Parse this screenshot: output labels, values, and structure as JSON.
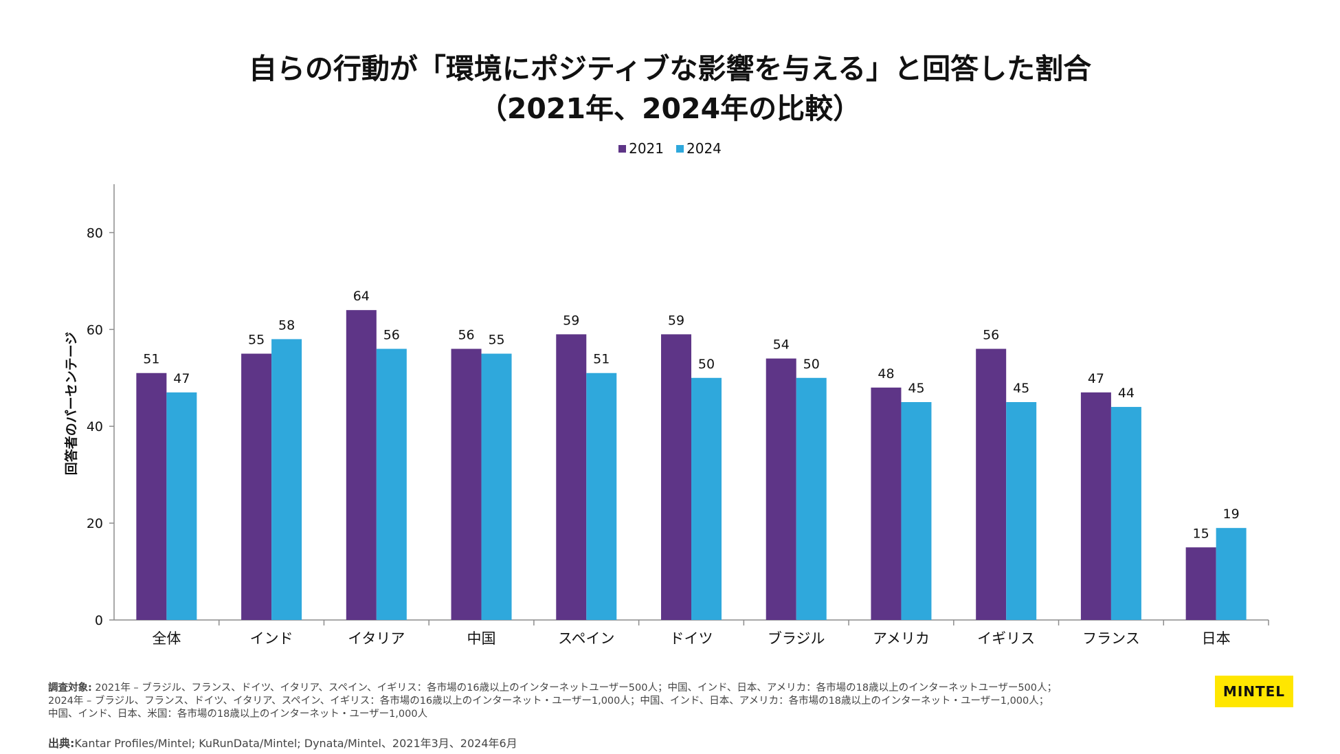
{
  "title_line1": "自らの行動が「環境にポジティブな影響を与える」と回答した割合",
  "title_line2": "（2021年、2024年の比較）",
  "colors": {
    "2021": "#5e3587",
    "2024": "#2fa8dc",
    "axis": "#8c8c8c"
  },
  "chart_data": {
    "type": "bar",
    "categories": [
      "全体",
      "インド",
      "イタリア",
      "中国",
      "スペイン",
      "ドイツ",
      "ブラジル",
      "アメリカ",
      "イギリス",
      "フランス",
      "日本"
    ],
    "series": [
      {
        "name": "2021",
        "values": [
          51,
          55,
          64,
          56,
          59,
          59,
          54,
          48,
          56,
          47,
          15
        ]
      },
      {
        "name": "2024",
        "values": [
          47,
          58,
          56,
          55,
          51,
          50,
          50,
          45,
          45,
          44,
          19
        ]
      }
    ],
    "ylabel": "回答者のパーセンテージ",
    "ylim": [
      0,
      90
    ],
    "yticks": [
      0,
      20,
      40,
      60,
      80
    ],
    "legend": "top-center",
    "grid": false
  },
  "footnote": {
    "label": "調査対象:",
    "line1": " 2021年 – ブラジル、フランス、ドイツ、イタリア、スペイン、イギリス：各市場の16歳以上のインターネットユーザー500人；中国、インド、日本、アメリカ：各市場の18歳以上のインターネットユーザー500人；",
    "line2": "2024年 – ブラジル、フランス、ドイツ、イタリア、スペイン、イギリス：各市場の16歳以上のインターネット・ユーザー1,000人；中国、インド、日本、アメリカ：各市場の18歳以上のインターネット・ユーザー1,000人；",
    "line3": "中国、インド、日本、米国：各市場の18歳以上のインターネット・ユーザー1,000人"
  },
  "source": {
    "label": "出典:",
    "text": "Kantar Profiles/Mintel; KuRunData/Mintel; Dynata/Mintel、2021年3月、2024年6月"
  },
  "logo_text": "MINTEL"
}
